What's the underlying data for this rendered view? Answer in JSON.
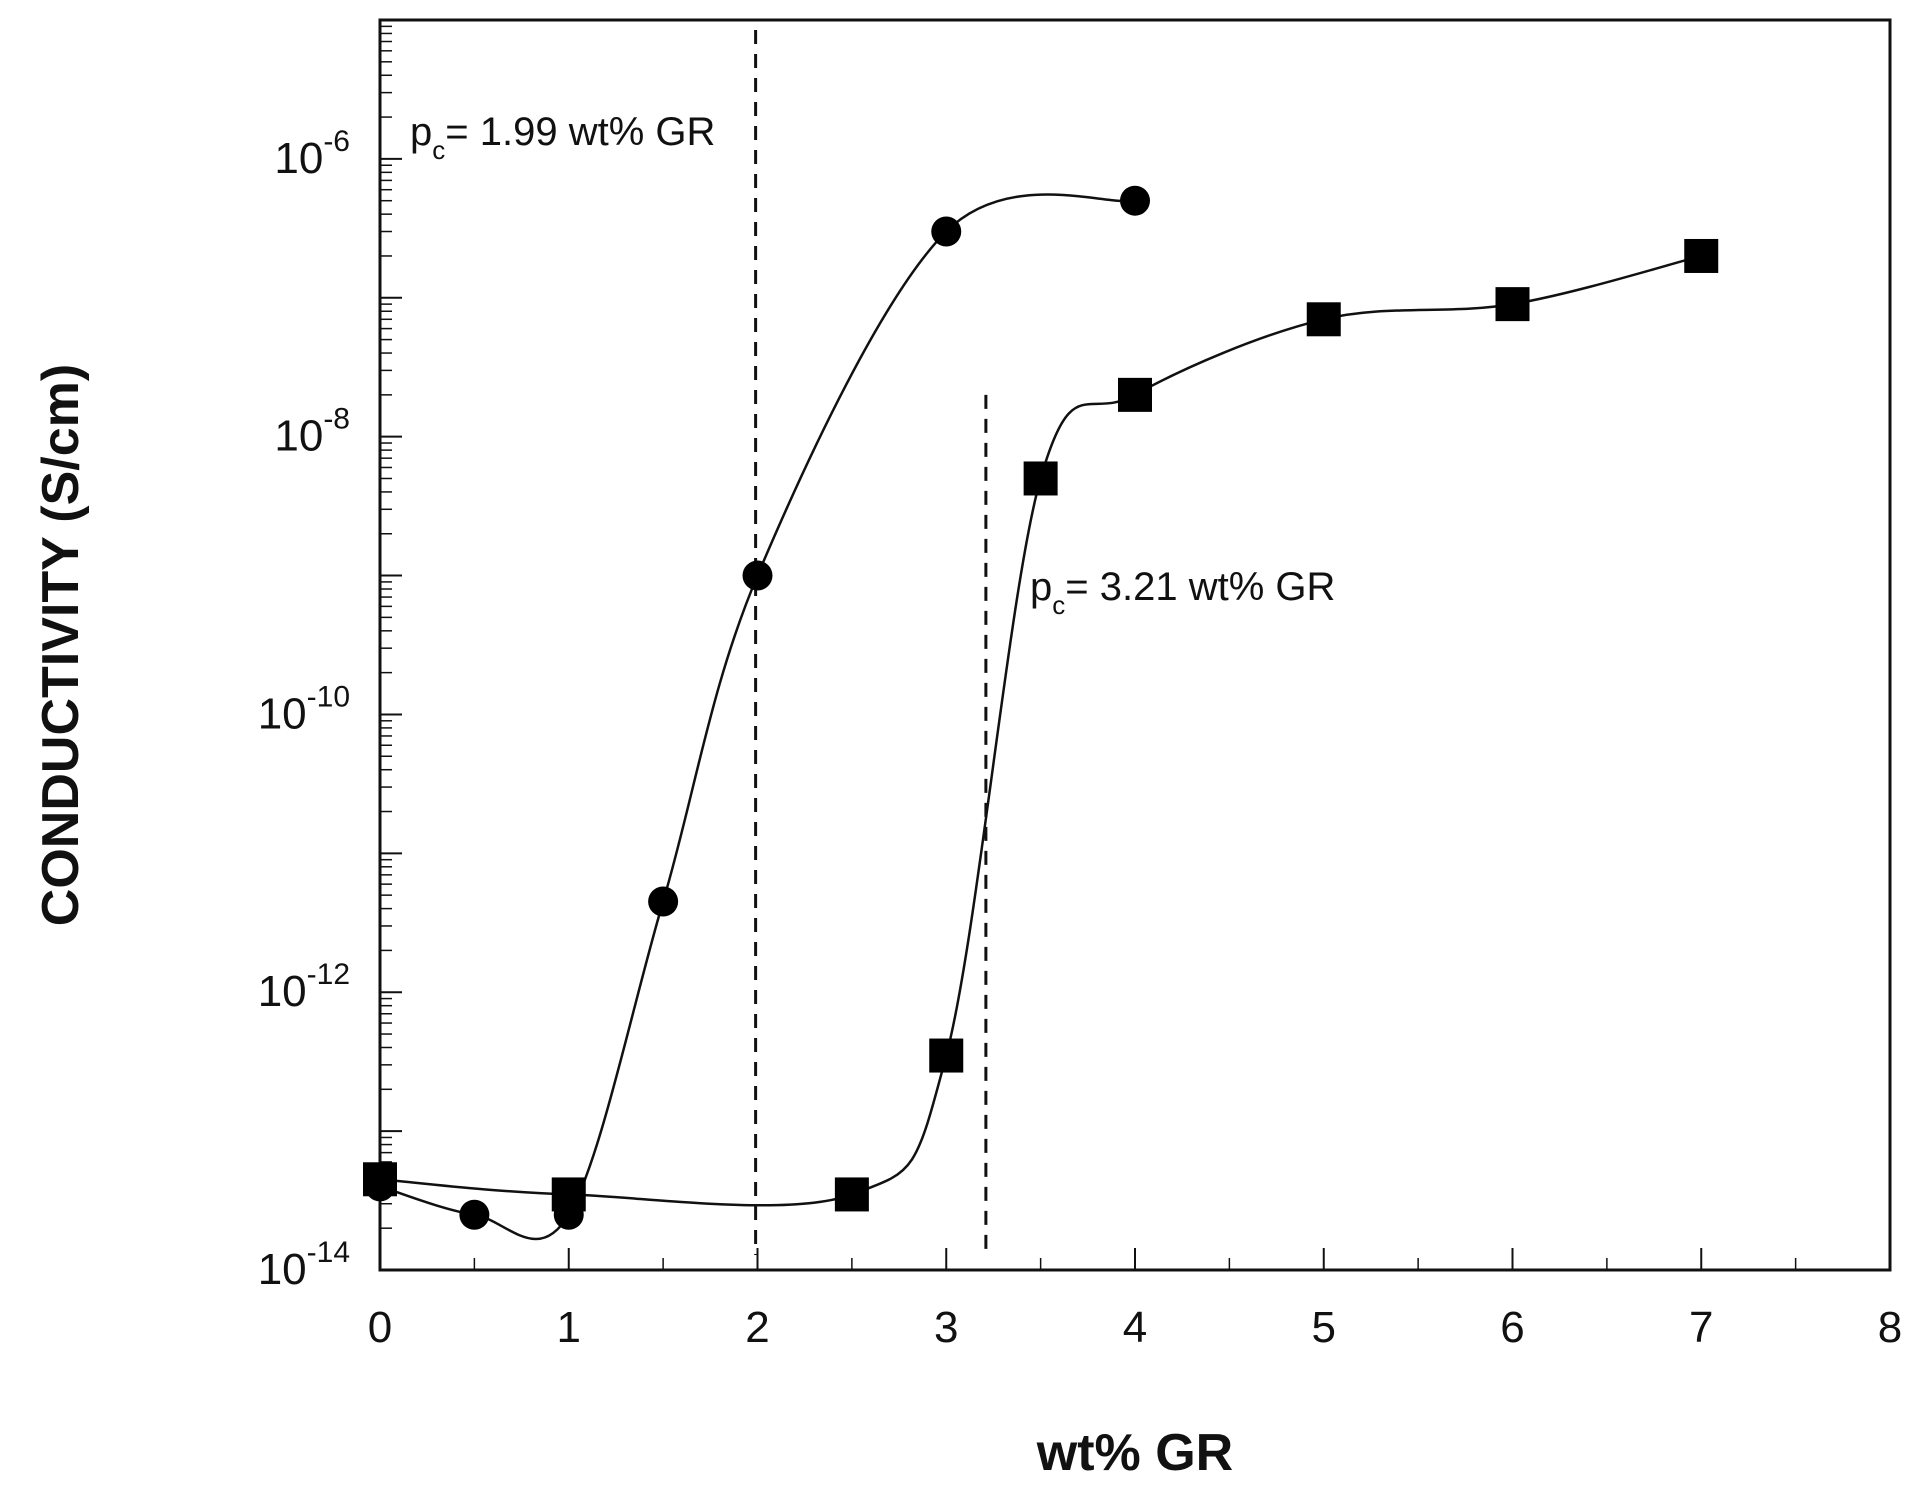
{
  "chart_data": {
    "type": "scatter",
    "xlabel": "wt% GR",
    "ylabel": "CONDUCTIVITY (S/cm)",
    "xlim": [
      0,
      8
    ],
    "ylim": [
      1e-14,
      1e-05
    ],
    "yscale": "log",
    "x_ticks": [
      "0",
      "1",
      "2",
      "3",
      "4",
      "5",
      "6",
      "7",
      "8"
    ],
    "y_ticks": [
      {
        "base": "10",
        "exp": "-6"
      },
      {
        "base": "10",
        "exp": "-8"
      },
      {
        "base": "10",
        "exp": "-10"
      },
      {
        "base": "10",
        "exp": "-12"
      },
      {
        "base": "10",
        "exp": "-14"
      }
    ],
    "grid": false,
    "series": [
      {
        "marker": "circle",
        "x": [
          0,
          0.5,
          1,
          1.5,
          2,
          3,
          4
        ],
        "y": [
          4e-14,
          2.5e-14,
          2.5e-14,
          4.5e-12,
          1e-09,
          3e-07,
          5e-07
        ]
      },
      {
        "marker": "square",
        "x": [
          0,
          1,
          2.5,
          3,
          3.5,
          4,
          5,
          6,
          7
        ],
        "y": [
          4.5e-14,
          3.5e-14,
          3.5e-14,
          3.5e-13,
          5e-09,
          2e-08,
          7e-08,
          9e-08,
          2e-07
        ]
      }
    ],
    "annotations": [
      {
        "p": "p",
        "sub": "c",
        "text": "= 1.99 wt% GR",
        "x": 1.99
      },
      {
        "p": "p",
        "sub": "c",
        "text": "= 3.21 wt% GR",
        "x": 3.21
      }
    ]
  }
}
